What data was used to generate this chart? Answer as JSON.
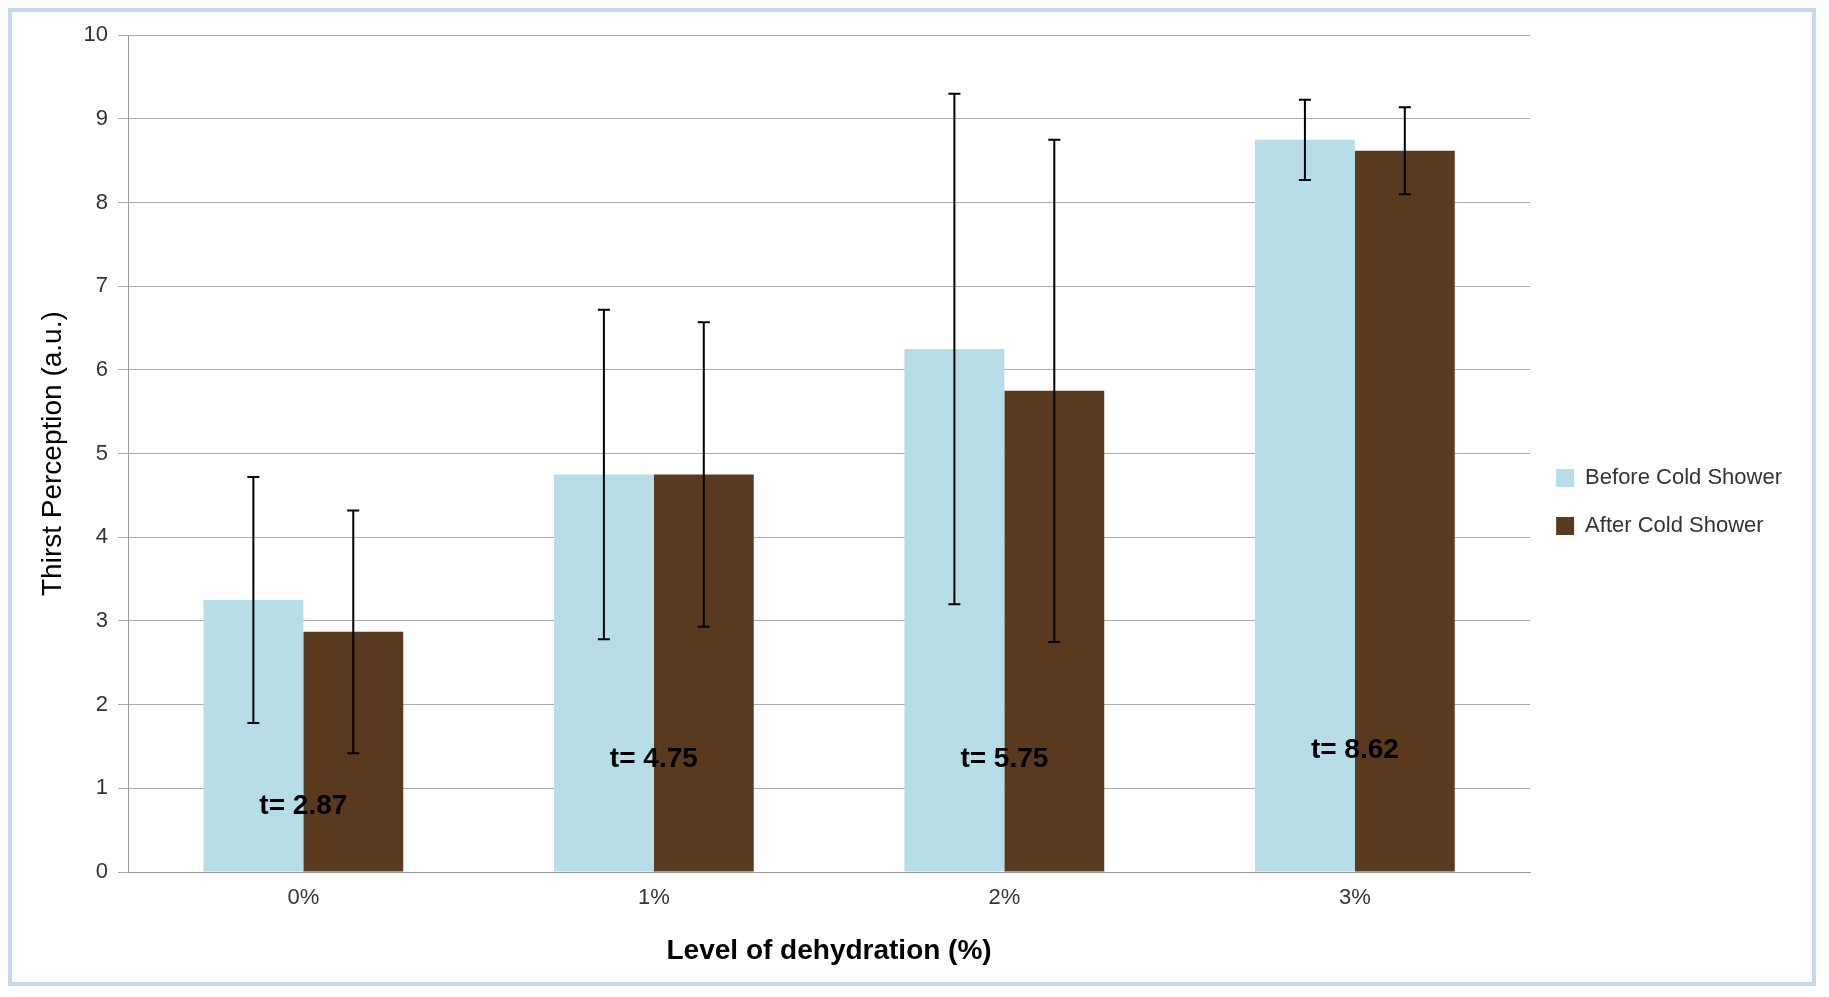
{
  "chart_data": {
    "type": "bar",
    "xlabel": "Level of dehydration (%)",
    "ylabel": "Thirst Perception (a.u.)",
    "categories": [
      "0%",
      "1%",
      "2%",
      "3%"
    ],
    "series": [
      {
        "name": "Before Cold Shower",
        "color": "#b7dde8",
        "values": [
          3.25,
          4.75,
          6.25,
          8.75
        ],
        "errors": [
          1.47,
          1.97,
          3.05,
          0.48
        ]
      },
      {
        "name": "After Cold Shower",
        "color": "#5a3a1e",
        "values": [
          2.87,
          4.75,
          5.75,
          8.62
        ],
        "errors": [
          1.45,
          1.82,
          3.0,
          0.52
        ]
      }
    ],
    "ylim": [
      0,
      10
    ],
    "yticks": [
      0,
      1,
      2,
      3,
      4,
      5,
      6,
      7,
      8,
      9,
      10
    ],
    "grid": "y",
    "legend": "right",
    "annotations": [
      {
        "text": "t= 2.87",
        "x": "0%",
        "y": 0.78
      },
      {
        "text": "t= 4.75",
        "x": "1%",
        "y": 1.35
      },
      {
        "text": "t= 5.75",
        "x": "2%",
        "y": 1.35
      },
      {
        "text": "t= 8.62",
        "x": "3%",
        "y": 1.45
      }
    ]
  }
}
